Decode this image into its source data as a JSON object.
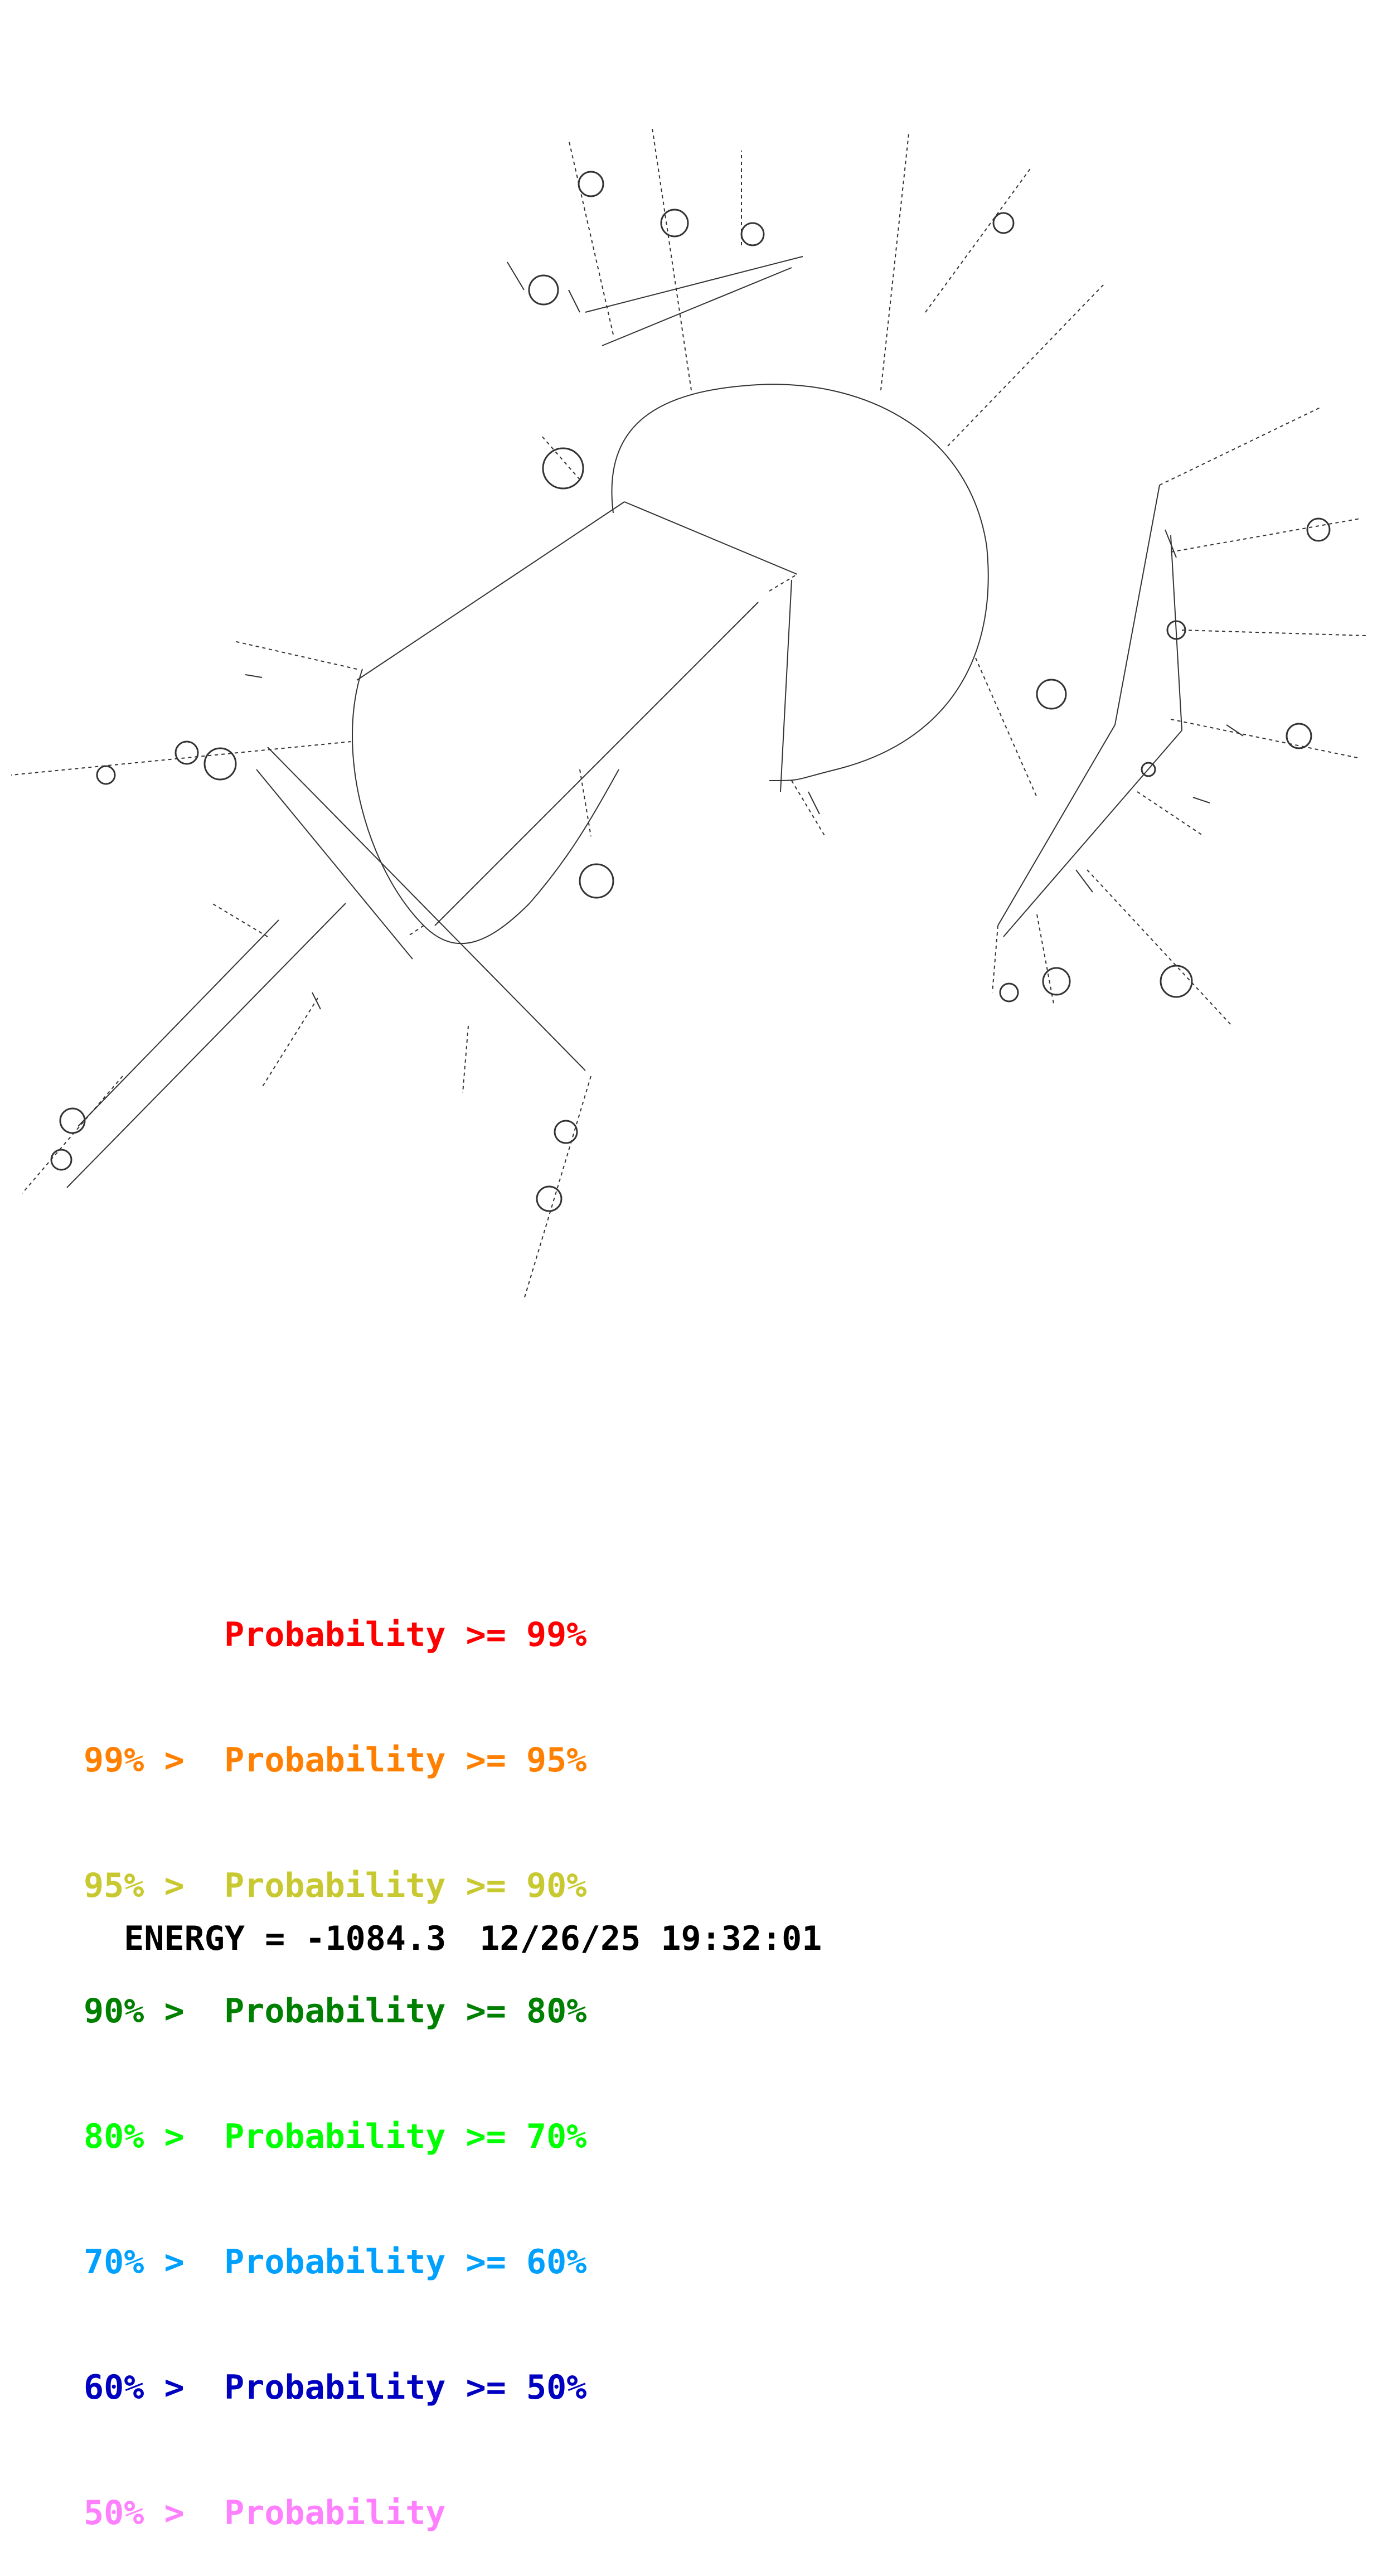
{
  "legend": [
    {
      "lower_bound": "",
      "text": "Probability",
      "upper_bound": ">= 99%",
      "color": "#ff0000"
    },
    {
      "lower_bound": "99% >",
      "text": "Probability",
      "upper_bound": ">= 95%",
      "color": "#ff8000"
    },
    {
      "lower_bound": "95% >",
      "text": "Probability",
      "upper_bound": ">= 90%",
      "color": "#c8c830"
    },
    {
      "lower_bound": "90% >",
      "text": "Probability",
      "upper_bound": ">= 80%",
      "color": "#008000"
    },
    {
      "lower_bound": "80% >",
      "text": "Probability",
      "upper_bound": ">= 70%",
      "color": "#00ff00"
    },
    {
      "lower_bound": "70% >",
      "text": "Probability",
      "upper_bound": ">= 60%",
      "color": "#00a0ff"
    },
    {
      "lower_bound": "60% >",
      "text": "Probability",
      "upper_bound": ">= 50%",
      "color": "#0000c0"
    },
    {
      "lower_bound": "50% >",
      "text": "Probability",
      "upper_bound": "",
      "color": "#ff80ff"
    }
  ],
  "energy": {
    "label": "ENERGY = -1084.3",
    "timestamp": "12/26/25 19:32:01"
  }
}
